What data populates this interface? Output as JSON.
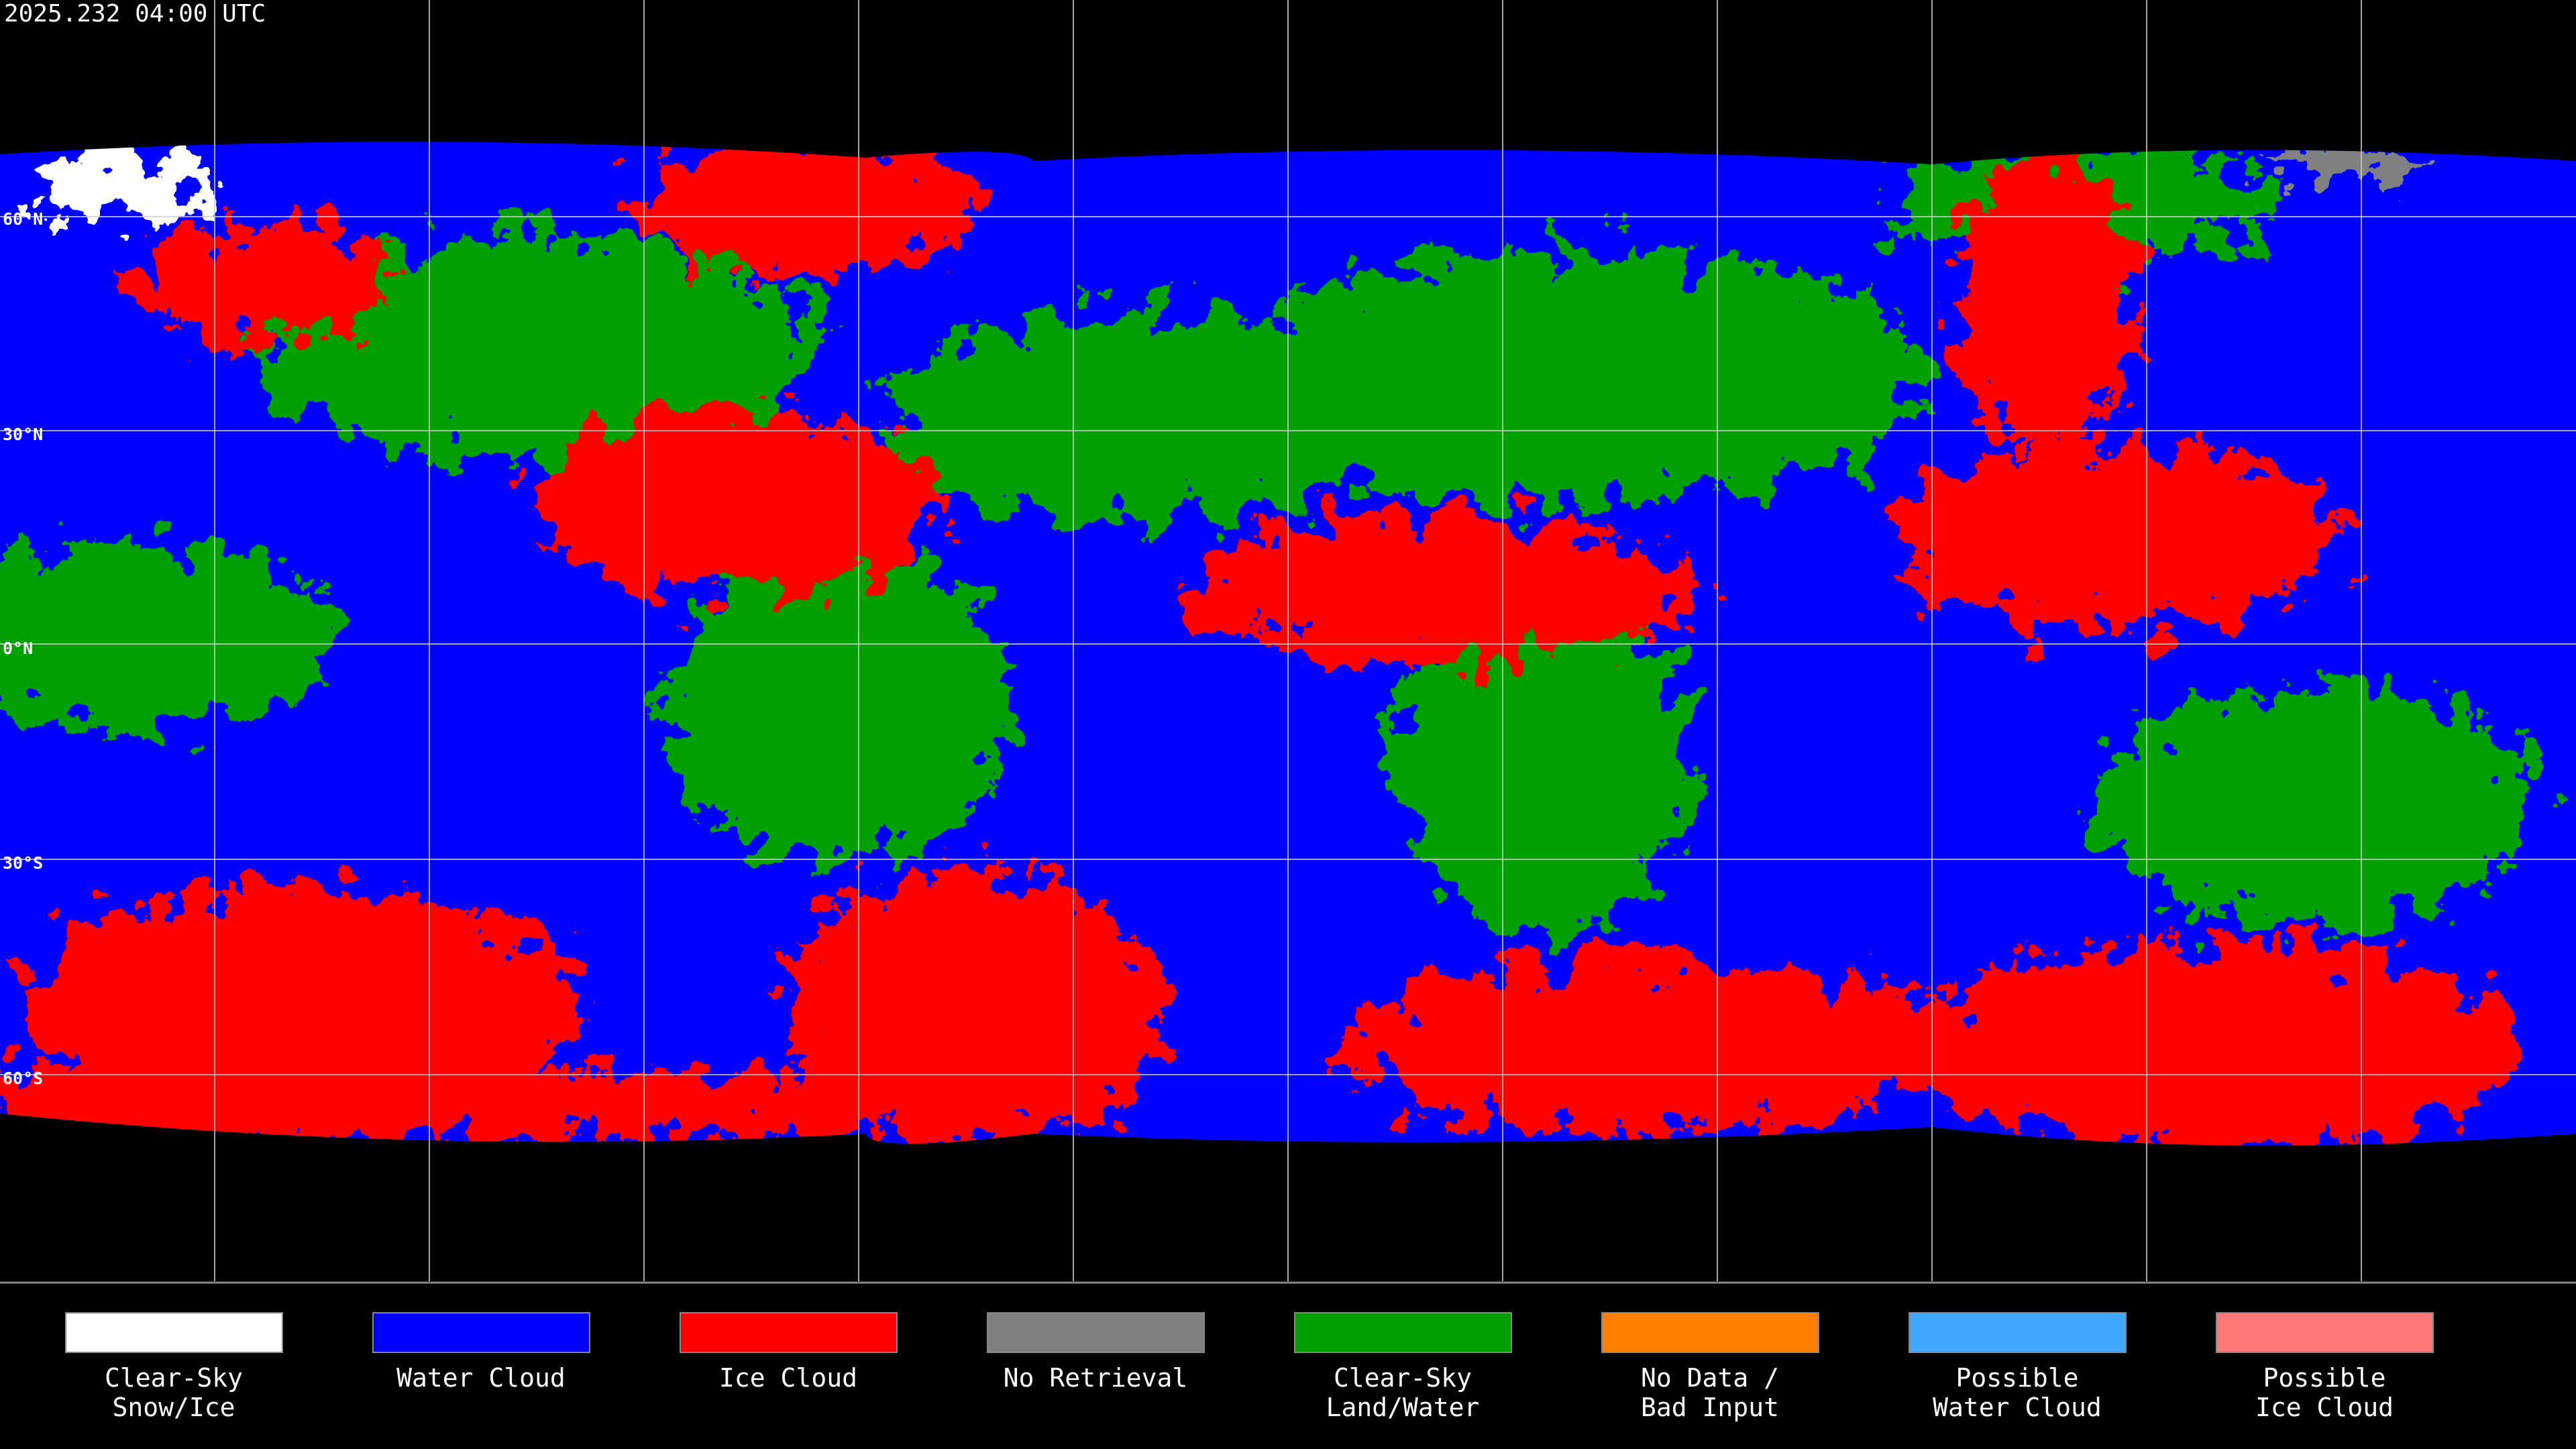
{
  "header": {
    "timestamp": "2025.232 04:00 UTC"
  },
  "map": {
    "lat_labels": [
      "60°N",
      "30°N",
      "0°N",
      "30°S",
      "60°S"
    ]
  },
  "legend": [
    {
      "lines": [
        "Clear-Sky",
        "Snow/Ice"
      ],
      "color": "#ffffff"
    },
    {
      "lines": [
        "Water Cloud"
      ],
      "color": "#0000ff"
    },
    {
      "lines": [
        "Ice Cloud"
      ],
      "color": "#ff0000"
    },
    {
      "lines": [
        "No Retrieval"
      ],
      "color": "#808080"
    },
    {
      "lines": [
        "Clear-Sky",
        "Land/Water"
      ],
      "color": "#00a000"
    },
    {
      "lines": [
        "No Data /",
        "Bad Input"
      ],
      "color": "#ff8000"
    },
    {
      "lines": [
        "Possible",
        "Water Cloud"
      ],
      "color": "#40a8ff"
    },
    {
      "lines": [
        "Possible",
        "Ice Cloud"
      ],
      "color": "#ff7878"
    }
  ]
}
